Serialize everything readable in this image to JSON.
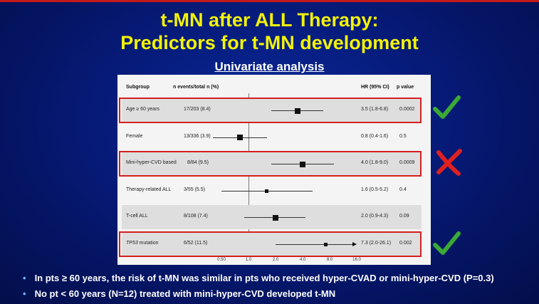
{
  "slide": {
    "title_line1": "t-MN after ALL Therapy:",
    "title_line2": "Predictors for t-MN development",
    "subtitle": "Univariate analysis",
    "bullets": [
      "In pts ≥ 60 years, the risk of t-MN was similar in pts who received hyper-CVAD or mini-hyper-CVD (P=0.3)",
      "No pt < 60 years (N=12) treated with mini-hyper-CVD developed t-MN"
    ],
    "marks": [
      "check-icon",
      "cross-icon",
      "check-icon"
    ],
    "colors": {
      "title": "#f2f20a",
      "background": "#061a78",
      "highlight_box": "#d41f1f",
      "check": "#3aa935",
      "cross": "#e02020"
    }
  },
  "forest": {
    "headers": {
      "subgroup": "Subgroup",
      "n": "n events/total n (%)",
      "hr": "HR (95% CI)",
      "p": "p value"
    },
    "rows": [
      {
        "subgroup": "Age ≥ 60 years",
        "n": "17/203 (8.4)",
        "hr_text": "3.5 (1.8-6.8)",
        "p": "0.0002",
        "hr": 3.5,
        "lo": 1.8,
        "hi": 6.8,
        "highlighted": true
      },
      {
        "subgroup": "Female",
        "n": "13/336 (3.9)",
        "hr_text": "0.8 (0.4-1.6)",
        "p": "0.5",
        "hr": 0.8,
        "lo": 0.4,
        "hi": 1.6,
        "highlighted": false
      },
      {
        "subgroup": "Mini-hyper-CVD based",
        "n": "8/84 (9.5)",
        "hr_text": "4.0 (1.8-9.0)",
        "p": "0.0009",
        "hr": 4.0,
        "lo": 1.8,
        "hi": 9.0,
        "highlighted": true
      },
      {
        "subgroup": "Therapy-related ALL",
        "n": "3/55 (5.5)",
        "hr_text": "1.6 (0.5-5.2)",
        "p": "0.4",
        "hr": 1.6,
        "lo": 0.5,
        "hi": 5.2,
        "highlighted": false
      },
      {
        "subgroup": "T-cell ALL",
        "n": "8/108 (7.4)",
        "hr_text": "2.0 (0.9-4.3)",
        "p": "0.09",
        "hr": 2.0,
        "lo": 0.9,
        "hi": 4.3,
        "highlighted": false
      },
      {
        "subgroup_italic": "TP53",
        "subgroup": " mutation",
        "n": "6/52 (11.5)",
        "hr_text": "7.3 (2.0-26.1)",
        "p": "0.002",
        "hr": 7.3,
        "lo": 2.0,
        "hi": 26.1,
        "highlighted": true,
        "arrow": true
      }
    ],
    "x_ticks": [
      "0.50",
      "1.0",
      "2.0",
      "4.0",
      "8.0",
      "16.0"
    ],
    "x_tick_values": [
      0.5,
      1,
      2,
      4,
      8,
      16
    ]
  }
}
